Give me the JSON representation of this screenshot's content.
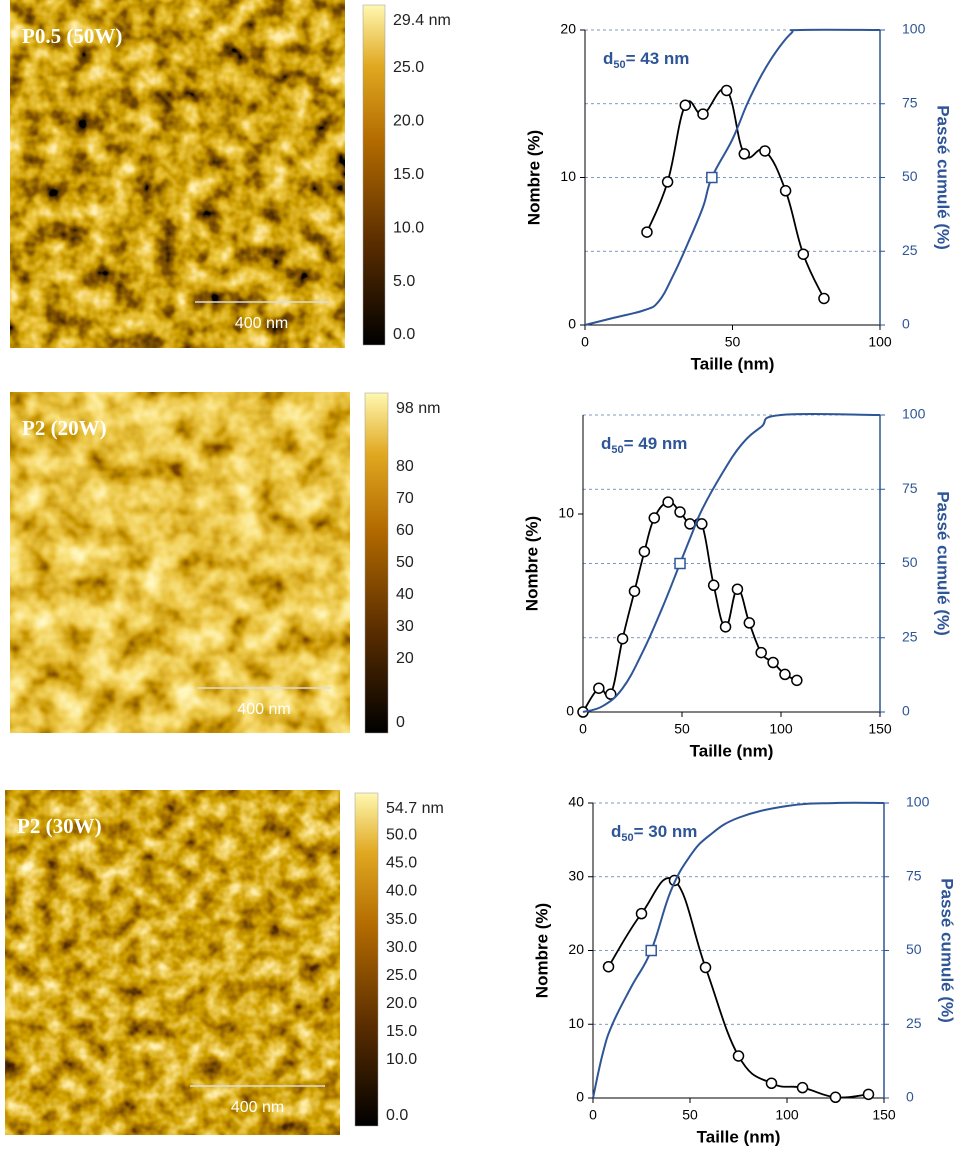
{
  "afm_images": [
    {
      "label": "P0.5 (50W)",
      "scale_bar": "400 nm",
      "colorbar": {
        "lim": [
          0,
          29.4
        ],
        "ticks": [
          {
            "value": 29.4,
            "label": "29.4 nm"
          },
          {
            "value": 25,
            "label": "25.0"
          },
          {
            "value": 20,
            "label": "20.0"
          },
          {
            "value": 15,
            "label": "15.0"
          },
          {
            "value": 10,
            "label": "10.0"
          },
          {
            "value": 5,
            "label": "5.0"
          },
          {
            "value": 0,
            "label": "0.0"
          }
        ]
      }
    },
    {
      "label": "P2 (20W)",
      "scale_bar": "400 nm",
      "colorbar": {
        "lim": [
          0,
          98
        ],
        "ticks": [
          {
            "value": 98,
            "label": "98 nm"
          },
          80,
          70,
          60,
          50,
          40,
          30,
          20,
          0
        ]
      }
    },
    {
      "label": "P2 (30W)",
      "scale_bar": "400 nm",
      "colorbar": {
        "lim": [
          0,
          54.7
        ],
        "ticks": [
          {
            "value": 54.7,
            "label": "54.7 nm"
          },
          {
            "value": 50,
            "label": "50.0"
          },
          {
            "value": 45,
            "label": "45.0"
          },
          {
            "value": 40,
            "label": "40.0"
          },
          {
            "value": 35,
            "label": "35.0"
          },
          {
            "value": 30,
            "label": "30.0"
          },
          {
            "value": 25,
            "label": "25.0"
          },
          {
            "value": 20,
            "label": "20.0"
          },
          {
            "value": 15,
            "label": "15.0"
          },
          {
            "value": 10,
            "label": "10.0"
          },
          {
            "value": 0,
            "label": "0.0"
          }
        ]
      }
    }
  ],
  "chart_data": [
    {
      "type": "line",
      "xlabel": "Taille (nm)",
      "ylabel": "Nombre (%)",
      "y2label": "Passé cumulé (%)",
      "xlim": [
        0,
        100
      ],
      "xticks": [
        0,
        50,
        100
      ],
      "ylim": [
        0,
        20
      ],
      "yticks": [
        0,
        10,
        20
      ],
      "y2lim": [
        0,
        100
      ],
      "y2ticks": [
        0,
        25,
        50,
        75,
        100
      ],
      "grid": "y2",
      "annotation": {
        "main": "d",
        "sub": "50",
        "rest": "= 43 nm"
      },
      "series": [
        {
          "color": "#000000",
          "marker": "circle",
          "x": [
            21,
            28,
            34,
            40,
            48,
            54,
            61,
            68,
            74,
            81
          ],
          "values": [
            6.3,
            9.7,
            14.9,
            14.3,
            15.9,
            11.6,
            11.8,
            9.1,
            4.8,
            1.8
          ]
        },
        {
          "color": "#2e5597",
          "axis": "y2",
          "marker": "none",
          "x": [
            0,
            10,
            20,
            25,
            30,
            35,
            40,
            43,
            50,
            55,
            60,
            65,
            70,
            73,
            100
          ],
          "values": [
            0,
            2.5,
            5,
            8,
            17,
            28,
            40,
            50,
            63,
            75,
            85,
            93,
            99,
            100,
            100
          ]
        },
        {
          "color": "#2e5597",
          "axis": "y2",
          "marker": "square",
          "line": false,
          "x": [
            43
          ],
          "values": [
            50
          ]
        }
      ]
    },
    {
      "type": "line",
      "xlabel": "Taille (nm)",
      "ylabel": "Nombre (%)",
      "y2label": "Passé cumulé (%)",
      "xlim": [
        0,
        150
      ],
      "xticks": [
        0,
        50,
        100,
        150
      ],
      "ylim": [
        0,
        15
      ],
      "yticks": [
        0,
        10
      ],
      "y2lim": [
        0,
        100
      ],
      "y2ticks": [
        0,
        25,
        50,
        75,
        100
      ],
      "grid": "y2",
      "annotation": {
        "main": "d",
        "sub": "50",
        "rest": "= 49 nm"
      },
      "series": [
        {
          "color": "#000000",
          "marker": "circle",
          "x": [
            0,
            8,
            14,
            20,
            26,
            31,
            36,
            43,
            49,
            54,
            60,
            66,
            72,
            78,
            84,
            90,
            96,
            102,
            108
          ],
          "values": [
            0,
            1.2,
            0.9,
            3.7,
            6.1,
            8.1,
            9.8,
            10.6,
            10.1,
            9.5,
            9.5,
            6.4,
            4.3,
            6.2,
            4.5,
            3.0,
            2.5,
            1.9,
            1.6
          ]
        },
        {
          "color": "#2e5597",
          "axis": "y2",
          "marker": "none",
          "x": [
            0,
            10,
            20,
            30,
            40,
            49,
            55,
            60,
            70,
            80,
            90,
            100,
            150
          ],
          "values": [
            0,
            2,
            8,
            20,
            35,
            50,
            60,
            68,
            80,
            90,
            96,
            100,
            100
          ]
        },
        {
          "color": "#2e5597",
          "axis": "y2",
          "marker": "square",
          "line": false,
          "x": [
            49
          ],
          "values": [
            50
          ]
        }
      ]
    },
    {
      "type": "line",
      "xlabel": "Taille (nm)",
      "ylabel": "Nombre (%)",
      "y2label": "Passé cumulé (%)",
      "xlim": [
        0,
        150
      ],
      "xticks": [
        0,
        50,
        100,
        150
      ],
      "ylim": [
        0,
        40
      ],
      "yticks": [
        0,
        10,
        20,
        30,
        40
      ],
      "y2lim": [
        0,
        100
      ],
      "y2ticks": [
        0,
        25,
        50,
        75,
        100
      ],
      "grid": "y2",
      "annotation": {
        "main": "d",
        "sub": "50",
        "rest": "= 30 nm"
      },
      "series": [
        {
          "color": "#000000",
          "marker": "circle",
          "x": [
            8,
            25,
            42,
            58,
            75,
            92,
            108,
            125,
            142
          ],
          "values": [
            17.8,
            25,
            29.5,
            17.7,
            5.7,
            2,
            1.4,
            0.1,
            0.5
          ]
        },
        {
          "color": "#2e5597",
          "axis": "y2",
          "marker": "none",
          "x": [
            0,
            5,
            10,
            20,
            30,
            40,
            50,
            60,
            75,
            100,
            125,
            150
          ],
          "values": [
            0,
            15,
            25,
            38,
            50,
            70,
            82,
            89,
            95,
            99,
            100,
            100
          ]
        },
        {
          "color": "#2e5597",
          "axis": "y2",
          "marker": "square",
          "line": false,
          "x": [
            30
          ],
          "values": [
            50
          ]
        }
      ]
    }
  ]
}
